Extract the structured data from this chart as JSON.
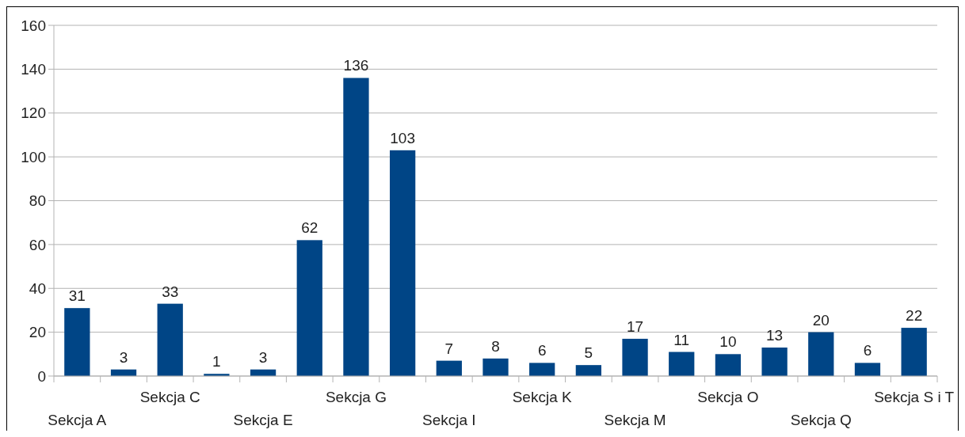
{
  "chart_data": {
    "type": "bar",
    "categories": [
      "Sekcja A",
      null,
      "Sekcja C",
      null,
      "Sekcja E",
      null,
      "Sekcja G",
      null,
      "Sekcja I",
      null,
      "Sekcja K",
      null,
      "Sekcja M",
      null,
      "Sekcja O",
      null,
      "Sekcja Q",
      null,
      "Sekcja S i T"
    ],
    "values": [
      31,
      3,
      33,
      1,
      3,
      62,
      136,
      103,
      7,
      8,
      6,
      5,
      17,
      11,
      10,
      13,
      20,
      6,
      22
    ],
    "color": "#004586",
    "ylim": [
      0,
      160
    ],
    "yticks": [
      0,
      20,
      40,
      60,
      80,
      100,
      120,
      140,
      160
    ],
    "grid": "y",
    "data_labels": true
  }
}
